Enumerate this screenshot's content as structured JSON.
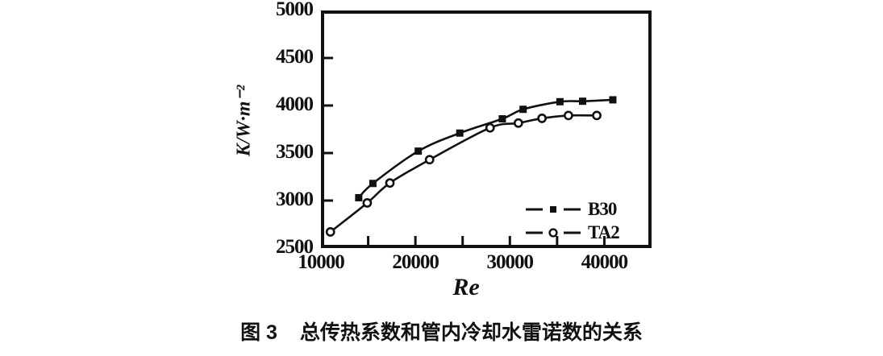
{
  "figure": {
    "caption_label": "图 3",
    "caption_text": "总传热系数和管内冷却水雷诺数的关系"
  },
  "colors": {
    "ink": "#111111",
    "background": "#ffffff",
    "marker_fill_open": "#ffffff"
  },
  "chart_data": {
    "type": "line",
    "title": "",
    "xlabel": "Re",
    "ylabel": "K/W·m⁻²",
    "xlim": [
      10000,
      45000
    ],
    "ylim": [
      2500,
      5000
    ],
    "grid": false,
    "legend_position": "inside-bottom-right",
    "x_tick_marks": [
      15000,
      20000,
      25000,
      30000,
      35000,
      40000
    ],
    "x_tick_labels": [
      {
        "value": 10000,
        "text": "10000"
      },
      {
        "value": 20000,
        "text": "20000"
      },
      {
        "value": 30000,
        "text": "30000"
      },
      {
        "value": 40000,
        "text": "40000"
      }
    ],
    "y_tick_marks": [
      3000,
      3500,
      4000,
      4500
    ],
    "y_tick_labels": [
      {
        "value": 2500,
        "text": "2500"
      },
      {
        "value": 3000,
        "text": "3000"
      },
      {
        "value": 3500,
        "text": "3500"
      },
      {
        "value": 4000,
        "text": "4000"
      },
      {
        "value": 4500,
        "text": "4500"
      },
      {
        "value": 5000,
        "text": "5000"
      }
    ],
    "series": [
      {
        "name": "B30",
        "marker": "filled-square",
        "line_style": "solid",
        "points": [
          [
            14000,
            3030
          ],
          [
            15500,
            3180
          ],
          [
            20300,
            3520
          ],
          [
            24700,
            3710
          ],
          [
            29200,
            3860
          ],
          [
            31400,
            3960
          ],
          [
            35300,
            4040
          ],
          [
            37700,
            4045
          ],
          [
            40900,
            4060
          ]
        ]
      },
      {
        "name": "TA2",
        "marker": "open-circle",
        "line_style": "solid",
        "points": [
          [
            11000,
            2670
          ],
          [
            14900,
            2975
          ],
          [
            17300,
            3185
          ],
          [
            21500,
            3430
          ],
          [
            27900,
            3765
          ],
          [
            30900,
            3815
          ],
          [
            33400,
            3865
          ],
          [
            36200,
            3895
          ],
          [
            39200,
            3895
          ]
        ]
      }
    ]
  }
}
